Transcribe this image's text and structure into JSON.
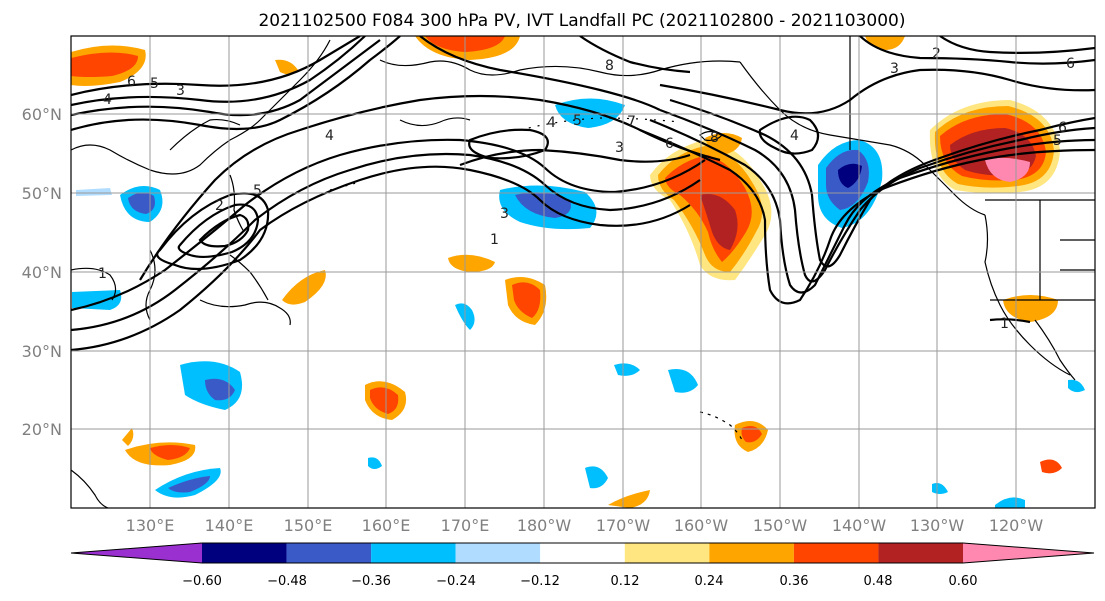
{
  "title": "2021102500 F084 300 hPa PV, IVT Landfall PC (2021102800 - 2021103000)",
  "map": {
    "lon_labels": [
      "130°E",
      "140°E",
      "150°E",
      "160°E",
      "170°E",
      "180°W",
      "170°W",
      "160°W",
      "150°W",
      "140°W",
      "130°W",
      "120°W"
    ],
    "lat_labels": [
      "20°N",
      "30°N",
      "40°N",
      "50°N",
      "60°N"
    ],
    "contour_labels": [
      "4",
      "6",
      "5",
      "3",
      "1",
      "2",
      "5",
      "4",
      "7",
      "4",
      "5",
      "3",
      "6",
      "8",
      "4",
      "3",
      "2",
      "6",
      "6",
      "5",
      "3",
      "1",
      "8"
    ]
  },
  "colorbar": {
    "ticks": [
      "−0.60",
      "−0.48",
      "−0.36",
      "−0.24",
      "−0.12",
      "0.12",
      "0.24",
      "0.36",
      "0.48",
      "0.60"
    ],
    "colors": [
      "#9b30d0",
      "#00007f",
      "#3a5ac8",
      "#00bfff",
      "#b0dcff",
      "#ffffff",
      "#ffe680",
      "#ffa500",
      "#ff4500",
      "#b22222",
      "#ff88b0"
    ]
  }
}
